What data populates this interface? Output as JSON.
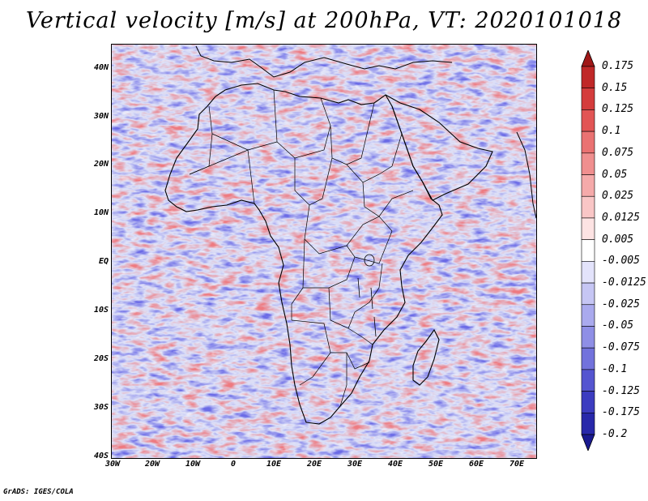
{
  "title": "Vertical velocity [m/s] at 200hPa, VT: 2020101018",
  "lat_labels": [
    "40N",
    "30N",
    "20N",
    "10N",
    "EQ",
    "10S",
    "20S",
    "30S",
    "40S"
  ],
  "lon_labels": [
    "30W",
    "20W",
    "10W",
    "0",
    "10E",
    "20E",
    "30E",
    "40E",
    "50E",
    "60E",
    "70E"
  ],
  "colorbar": {
    "levels": [
      "0.175",
      "0.15",
      "0.125",
      "0.1",
      "0.075",
      "0.05",
      "0.025",
      "0.0125",
      "0.005",
      "-0.005",
      "-0.0125",
      "-0.025",
      "-0.05",
      "-0.075",
      "-0.1",
      "-0.125",
      "-0.175",
      "-0.2"
    ],
    "colors": [
      "#a01818",
      "#c02828",
      "#d43c3c",
      "#e25555",
      "#ea7272",
      "#f08f8f",
      "#f5aaaa",
      "#f9c6c6",
      "#fde3e3",
      "#ffffff",
      "#e3e3fb",
      "#c6c6f4",
      "#aaaaee",
      "#8f8fe6",
      "#7272dc",
      "#5555d0",
      "#3c3cc0",
      "#2828aa",
      "#1a1a90"
    ]
  },
  "credit": "GrADS: IGES/COLA",
  "map_colors": {
    "positive": "#f0888c",
    "negative": "#7a7ae8",
    "background": "#d8dcf6",
    "coast": "#000000"
  }
}
